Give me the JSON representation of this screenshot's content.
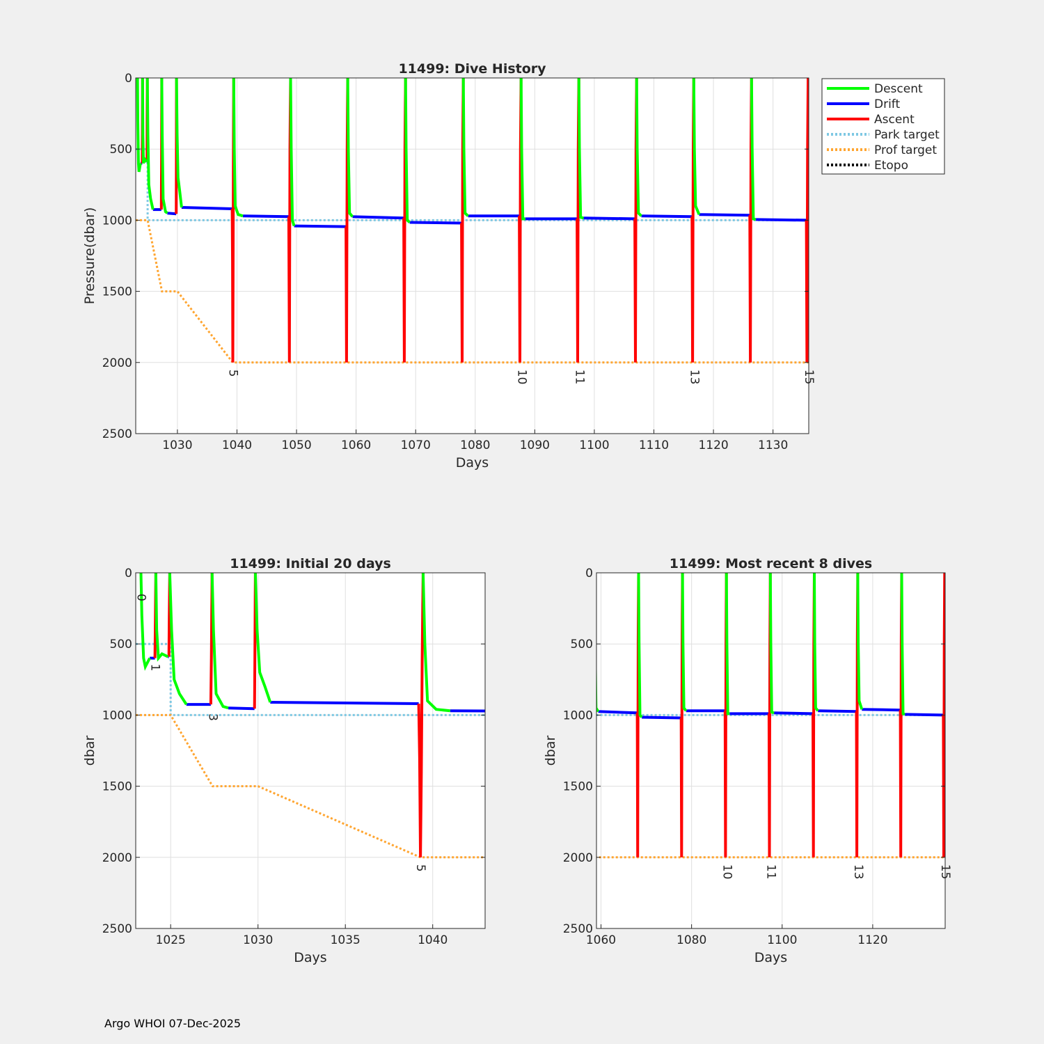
{
  "footer": "Argo WHOI 07-Dec-2025",
  "colors": {
    "descent": "#00ff00",
    "drift": "#0000ff",
    "ascent": "#ff0000",
    "park": "#7ec8e3",
    "prof": "#ffa530",
    "etopo": "#000000"
  },
  "legend": [
    "Descent",
    "Drift",
    "Ascent",
    "Park target",
    "Prof target",
    "Etopo"
  ],
  "chart_data": [
    {
      "type": "line",
      "title": "11499: Dive History",
      "xlabel": "Days",
      "ylabel": "Pressure(dbar)",
      "xlim": [
        1023,
        1136
      ],
      "ylim": [
        0,
        2500
      ],
      "xticks": [
        1030,
        1040,
        1050,
        1060,
        1070,
        1080,
        1090,
        1100,
        1110,
        1120,
        1130
      ],
      "yticks": [
        0,
        500,
        1000,
        1500,
        2000,
        2500
      ],
      "reversed_y": true,
      "profile_labels": [
        {
          "text": "5",
          "x": 1039.3
        },
        {
          "text": "10",
          "x": 1087.8
        },
        {
          "text": "11",
          "x": 1097.5
        },
        {
          "text": "13",
          "x": 1116.8
        },
        {
          "text": "15",
          "x": 1136
        }
      ]
    },
    {
      "type": "line",
      "title": "11499: Initial 20 days",
      "xlabel": "Days",
      "ylabel": "dbar",
      "xlim": [
        1023,
        1043
      ],
      "ylim": [
        0,
        2500
      ],
      "xticks": [
        1025,
        1030,
        1035,
        1040
      ],
      "yticks": [
        0,
        500,
        1000,
        1500,
        2000,
        2500
      ],
      "reversed_y": true,
      "profile_labels": [
        {
          "text": "0",
          "x": 1023.3
        },
        {
          "text": "1",
          "x": 1024.1
        },
        {
          "text": "3",
          "x": 1027.4
        },
        {
          "text": "5",
          "x": 1039.3
        }
      ]
    },
    {
      "type": "line",
      "title": "11499: Most recent 8 dives",
      "xlabel": "Days",
      "ylabel": "dbar",
      "xlim": [
        1059,
        1136
      ],
      "ylim": [
        0,
        2500
      ],
      "xticks": [
        1060,
        1080,
        1100,
        1120
      ],
      "yticks": [
        0,
        500,
        1000,
        1500,
        2000,
        2500
      ],
      "reversed_y": true,
      "profile_labels": [
        {
          "text": "10",
          "x": 1087.8
        },
        {
          "text": "11",
          "x": 1097.5
        },
        {
          "text": "13",
          "x": 1116.8
        },
        {
          "text": "15",
          "x": 1136
        }
      ]
    }
  ],
  "series": {
    "park_target": [
      [
        1023,
        500
      ],
      [
        1025,
        500
      ],
      [
        1025,
        1000
      ],
      [
        1136,
        1000
      ]
    ],
    "prof_target": [
      [
        1023,
        1000
      ],
      [
        1025,
        1000
      ],
      [
        1027.4,
        1500
      ],
      [
        1030,
        1500
      ],
      [
        1039.3,
        2000
      ],
      [
        1136,
        2000
      ]
    ],
    "cycles": [
      {
        "t0": 1023.3,
        "park": 660,
        "descent": [
          [
            1023.3,
            0
          ],
          [
            1023.35,
            300
          ],
          [
            1023.45,
            600
          ],
          [
            1023.55,
            660
          ],
          [
            1023.8,
            600
          ]
        ],
        "drift": [
          [
            1023.8,
            600
          ],
          [
            1024.1,
            600
          ]
        ],
        "ascent": [
          [
            1024.1,
            600
          ],
          [
            1024.12,
            400
          ],
          [
            1024.15,
            0
          ]
        ]
      },
      {
        "t0": 1024.15,
        "park": 600,
        "descent": [
          [
            1024.15,
            0
          ],
          [
            1024.2,
            400
          ],
          [
            1024.3,
            600
          ],
          [
            1024.5,
            570
          ],
          [
            1024.85,
            590
          ]
        ],
        "drift": [
          [
            1024.85,
            590
          ],
          [
            1024.9,
            590
          ]
        ],
        "ascent": [
          [
            1024.9,
            590
          ],
          [
            1024.92,
            300
          ],
          [
            1024.95,
            0
          ]
        ]
      },
      {
        "t0": 1024.95,
        "park": 925,
        "descent": [
          [
            1024.95,
            0
          ],
          [
            1025.05,
            400
          ],
          [
            1025.2,
            750
          ],
          [
            1025.5,
            850
          ],
          [
            1025.9,
            925
          ]
        ],
        "drift": [
          [
            1025.9,
            925
          ],
          [
            1027.3,
            925
          ]
        ],
        "ascent": [
          [
            1027.3,
            925
          ],
          [
            1027.33,
            600
          ],
          [
            1027.37,
            0
          ]
        ]
      },
      {
        "t0": 1027.37,
        "park": 950,
        "descent": [
          [
            1027.37,
            0
          ],
          [
            1027.45,
            400
          ],
          [
            1027.6,
            850
          ],
          [
            1028.0,
            940
          ],
          [
            1028.3,
            950
          ]
        ],
        "drift": [
          [
            1028.3,
            950
          ],
          [
            1029.8,
            955
          ]
        ],
        "ascent": [
          [
            1029.8,
            955
          ],
          [
            1029.82,
            600
          ],
          [
            1029.85,
            0
          ]
        ]
      },
      {
        "t0": 1029.85,
        "park": 915,
        "descent": [
          [
            1029.85,
            0
          ],
          [
            1029.95,
            400
          ],
          [
            1030.1,
            700
          ],
          [
            1030.4,
            800
          ],
          [
            1030.7,
            910
          ]
        ],
        "drift": [
          [
            1030.7,
            910
          ],
          [
            1039.2,
            920
          ]
        ],
        "ascent": [
          [
            1039.2,
            920
          ],
          [
            1039.25,
            1300
          ],
          [
            1039.3,
            2000
          ],
          [
            1039.35,
            1400
          ],
          [
            1039.4,
            600
          ],
          [
            1039.45,
            0
          ]
        ]
      },
      {
        "t0": 1039.45,
        "park": 970,
        "descent": [
          [
            1039.45,
            0
          ],
          [
            1039.55,
            500
          ],
          [
            1039.7,
            900
          ],
          [
            1040.2,
            960
          ],
          [
            1041,
            970
          ]
        ],
        "drift": [
          [
            1041,
            970
          ],
          [
            1048.7,
            975
          ]
        ],
        "ascent": [
          [
            1048.7,
            975
          ],
          [
            1048.8,
            2000
          ],
          [
            1048.9,
            500
          ],
          [
            1049,
            0
          ]
        ]
      },
      {
        "t0": 1049,
        "park": 1040,
        "descent": [
          [
            1049,
            0
          ],
          [
            1049.1,
            500
          ],
          [
            1049.3,
            1000
          ],
          [
            1049.6,
            1040
          ]
        ],
        "drift": [
          [
            1049.6,
            1040
          ],
          [
            1058.3,
            1045
          ]
        ],
        "ascent": [
          [
            1058.3,
            1045
          ],
          [
            1058.4,
            2000
          ],
          [
            1058.5,
            500
          ],
          [
            1058.6,
            0
          ]
        ]
      },
      {
        "t0": 1058.6,
        "park": 975,
        "descent": [
          [
            1058.6,
            0
          ],
          [
            1058.7,
            500
          ],
          [
            1058.9,
            950
          ],
          [
            1059.4,
            975
          ]
        ],
        "drift": [
          [
            1059.4,
            975
          ],
          [
            1068.0,
            985
          ]
        ],
        "ascent": [
          [
            1068.0,
            985
          ],
          [
            1068.1,
            2000
          ],
          [
            1068.2,
            500
          ],
          [
            1068.3,
            0
          ]
        ]
      },
      {
        "t0": 1068.3,
        "park": 1015,
        "descent": [
          [
            1068.3,
            0
          ],
          [
            1068.4,
            500
          ],
          [
            1068.6,
            1000
          ],
          [
            1069,
            1015
          ]
        ],
        "drift": [
          [
            1069,
            1015
          ],
          [
            1077.7,
            1020
          ]
        ],
        "ascent": [
          [
            1077.7,
            1020
          ],
          [
            1077.8,
            2000
          ],
          [
            1077.9,
            500
          ],
          [
            1078,
            0
          ]
        ]
      },
      {
        "t0": 1078,
        "park": 970,
        "descent": [
          [
            1078,
            0
          ],
          [
            1078.1,
            500
          ],
          [
            1078.3,
            950
          ],
          [
            1078.8,
            970
          ]
        ],
        "drift": [
          [
            1078.8,
            970
          ],
          [
            1087.4,
            970
          ]
        ],
        "ascent": [
          [
            1087.4,
            970
          ],
          [
            1087.5,
            2000
          ],
          [
            1087.6,
            500
          ],
          [
            1087.7,
            0
          ]
        ]
      },
      {
        "t0": 1087.7,
        "park": 990,
        "descent": [
          [
            1087.7,
            0
          ],
          [
            1087.8,
            500
          ],
          [
            1088,
            990
          ],
          [
            1088.4,
            990
          ]
        ],
        "drift": [
          [
            1088.4,
            990
          ],
          [
            1097.1,
            990
          ]
        ],
        "ascent": [
          [
            1097.1,
            990
          ],
          [
            1097.2,
            2000
          ],
          [
            1097.3,
            500
          ],
          [
            1097.4,
            0
          ]
        ]
      },
      {
        "t0": 1097.4,
        "park": 985,
        "descent": [
          [
            1097.4,
            0
          ],
          [
            1097.5,
            500
          ],
          [
            1097.7,
            980
          ],
          [
            1098.2,
            985
          ]
        ],
        "drift": [
          [
            1098.2,
            985
          ],
          [
            1106.8,
            990
          ]
        ],
        "ascent": [
          [
            1106.8,
            990
          ],
          [
            1106.9,
            2000
          ],
          [
            1107.0,
            500
          ],
          [
            1107.1,
            0
          ]
        ]
      },
      {
        "t0": 1107.1,
        "park": 970,
        "descent": [
          [
            1107.1,
            0
          ],
          [
            1107.2,
            500
          ],
          [
            1107.4,
            950
          ],
          [
            1107.9,
            970
          ]
        ],
        "drift": [
          [
            1107.9,
            970
          ],
          [
            1116.4,
            975
          ]
        ],
        "ascent": [
          [
            1116.4,
            975
          ],
          [
            1116.5,
            2000
          ],
          [
            1116.6,
            500
          ],
          [
            1116.7,
            0
          ]
        ]
      },
      {
        "t0": 1116.7,
        "park": 960,
        "descent": [
          [
            1116.7,
            0
          ],
          [
            1116.8,
            500
          ],
          [
            1117.0,
            900
          ],
          [
            1117.6,
            960
          ]
        ],
        "drift": [
          [
            1117.6,
            960
          ],
          [
            1126.1,
            965
          ]
        ],
        "ascent": [
          [
            1126.1,
            965
          ],
          [
            1126.2,
            2000
          ],
          [
            1126.3,
            500
          ],
          [
            1126.4,
            0
          ]
        ]
      },
      {
        "t0": 1126.4,
        "park": 995,
        "descent": [
          [
            1126.4,
            0
          ],
          [
            1126.5,
            500
          ],
          [
            1126.7,
            990
          ],
          [
            1127.1,
            995
          ]
        ],
        "drift": [
          [
            1127.1,
            995
          ],
          [
            1135.6,
            1000
          ]
        ],
        "ascent": [
          [
            1135.6,
            1000
          ],
          [
            1135.7,
            2000
          ],
          [
            1135.8,
            500
          ],
          [
            1135.9,
            0
          ]
        ]
      }
    ]
  }
}
